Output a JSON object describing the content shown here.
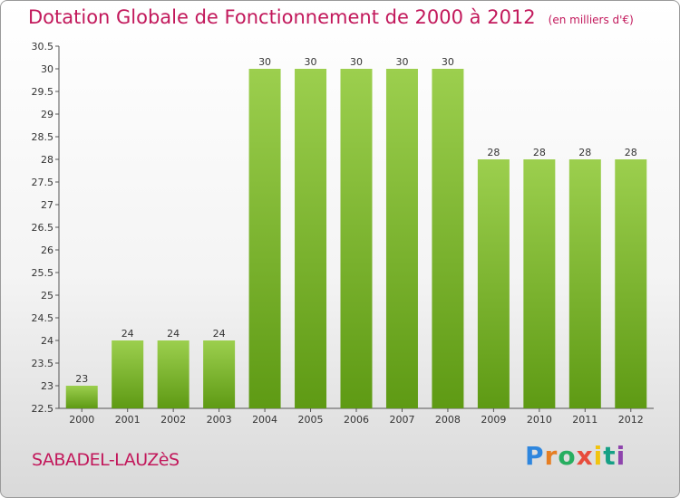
{
  "chart_data": {
    "type": "bar",
    "title": "Dotation Globale de Fonctionnement de 2000 à 2012",
    "unit": "(en milliers d'€)",
    "categories": [
      "2000",
      "2001",
      "2002",
      "2003",
      "2004",
      "2005",
      "2006",
      "2007",
      "2008",
      "2009",
      "2010",
      "2011",
      "2012"
    ],
    "values": [
      23,
      24,
      24,
      24,
      30,
      30,
      30,
      30,
      30,
      28,
      28,
      28,
      28
    ],
    "value_labels": [
      "23",
      "24",
      "24",
      "24",
      "30",
      "30",
      "30",
      "30",
      "30",
      "28",
      "28",
      "28",
      "28"
    ],
    "ylim": [
      22.5,
      30.5
    ],
    "yticks": [
      "22.5",
      "23",
      "23.5",
      "24",
      "24.5",
      "25",
      "25.5",
      "26",
      "26.5",
      "27",
      "27.5",
      "28",
      "28.5",
      "29",
      "29.5",
      "30",
      "30.5"
    ],
    "grid": false,
    "bar_color_top": "#9ccf4e",
    "bar_color_bottom": "#5e9a14"
  },
  "commune": "SABADEL-LAUZèS",
  "logo": {
    "text": "Proxiti"
  }
}
